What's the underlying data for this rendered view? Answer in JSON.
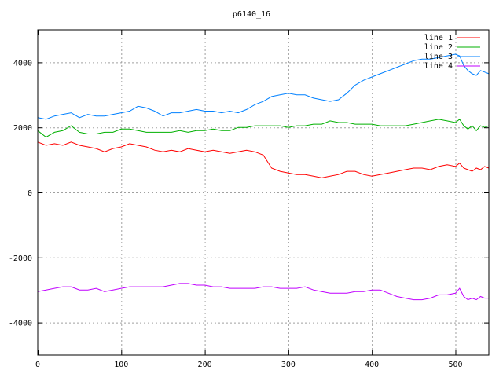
{
  "chart_data": {
    "type": "line",
    "title": "p6140_16",
    "xlabel": "",
    "ylabel": "",
    "xlim": [
      0,
      540
    ],
    "ylim": [
      -5000,
      5000
    ],
    "xticks": [
      0,
      100,
      200,
      300,
      400,
      500
    ],
    "yticks": [
      -4000,
      -2000,
      0,
      2000,
      4000
    ],
    "grid": true,
    "legend_position": "top-right",
    "x": [
      0,
      10,
      20,
      30,
      40,
      50,
      60,
      70,
      80,
      90,
      100,
      110,
      120,
      130,
      140,
      150,
      160,
      170,
      180,
      190,
      200,
      210,
      220,
      230,
      240,
      250,
      260,
      270,
      280,
      290,
      300,
      310,
      320,
      330,
      340,
      350,
      360,
      370,
      380,
      390,
      400,
      410,
      420,
      430,
      440,
      450,
      460,
      470,
      480,
      490,
      500,
      505,
      510,
      515,
      520,
      525,
      530,
      535,
      540
    ],
    "series": [
      {
        "name": "line 1",
        "color": "#ff0000",
        "values": [
          1550,
          1450,
          1500,
          1450,
          1550,
          1450,
          1400,
          1350,
          1250,
          1350,
          1400,
          1500,
          1450,
          1400,
          1300,
          1250,
          1300,
          1250,
          1350,
          1300,
          1250,
          1300,
          1250,
          1200,
          1250,
          1300,
          1250,
          1150,
          750,
          650,
          600,
          550,
          550,
          500,
          450,
          500,
          550,
          650,
          650,
          550,
          500,
          550,
          600,
          650,
          700,
          750,
          750,
          700,
          800,
          850,
          800,
          900,
          750,
          700,
          650,
          750,
          700,
          800,
          750
        ]
      },
      {
        "name": "line 2",
        "color": "#00b000",
        "values": [
          1900,
          1700,
          1850,
          1900,
          2050,
          1850,
          1800,
          1800,
          1850,
          1850,
          1950,
          1950,
          1900,
          1850,
          1850,
          1850,
          1850,
          1900,
          1850,
          1900,
          1900,
          1950,
          1900,
          1900,
          2000,
          2000,
          2050,
          2050,
          2050,
          2050,
          2000,
          2050,
          2050,
          2100,
          2100,
          2200,
          2150,
          2150,
          2100,
          2100,
          2100,
          2050,
          2050,
          2050,
          2050,
          2100,
          2150,
          2200,
          2250,
          2200,
          2150,
          2250,
          2050,
          1950,
          2050,
          1900,
          2050,
          2000,
          2050
        ]
      },
      {
        "name": "line 3",
        "color": "#0080ff",
        "values": [
          2300,
          2250,
          2350,
          2400,
          2450,
          2300,
          2400,
          2350,
          2350,
          2400,
          2450,
          2500,
          2650,
          2600,
          2500,
          2350,
          2450,
          2450,
          2500,
          2550,
          2500,
          2500,
          2450,
          2500,
          2450,
          2550,
          2700,
          2800,
          2950,
          3000,
          3050,
          3000,
          3000,
          2900,
          2850,
          2800,
          2850,
          3050,
          3300,
          3450,
          3550,
          3650,
          3750,
          3850,
          3950,
          4050,
          4100,
          4100,
          4150,
          4200,
          4250,
          4200,
          3900,
          3750,
          3650,
          3600,
          3750,
          3700,
          3650
        ]
      },
      {
        "name": "line 4",
        "color": "#c000ff",
        "values": [
          -3050,
          -3000,
          -2950,
          -2900,
          -2900,
          -3000,
          -3000,
          -2950,
          -3050,
          -3000,
          -2950,
          -2900,
          -2900,
          -2900,
          -2900,
          -2900,
          -2850,
          -2800,
          -2800,
          -2850,
          -2850,
          -2900,
          -2900,
          -2950,
          -2950,
          -2950,
          -2950,
          -2900,
          -2900,
          -2950,
          -2950,
          -2950,
          -2900,
          -3000,
          -3050,
          -3100,
          -3100,
          -3100,
          -3050,
          -3050,
          -3000,
          -3000,
          -3100,
          -3200,
          -3250,
          -3300,
          -3300,
          -3250,
          -3150,
          -3150,
          -3100,
          -2950,
          -3200,
          -3300,
          -3250,
          -3300,
          -3200,
          -3250,
          -3250
        ]
      }
    ]
  }
}
